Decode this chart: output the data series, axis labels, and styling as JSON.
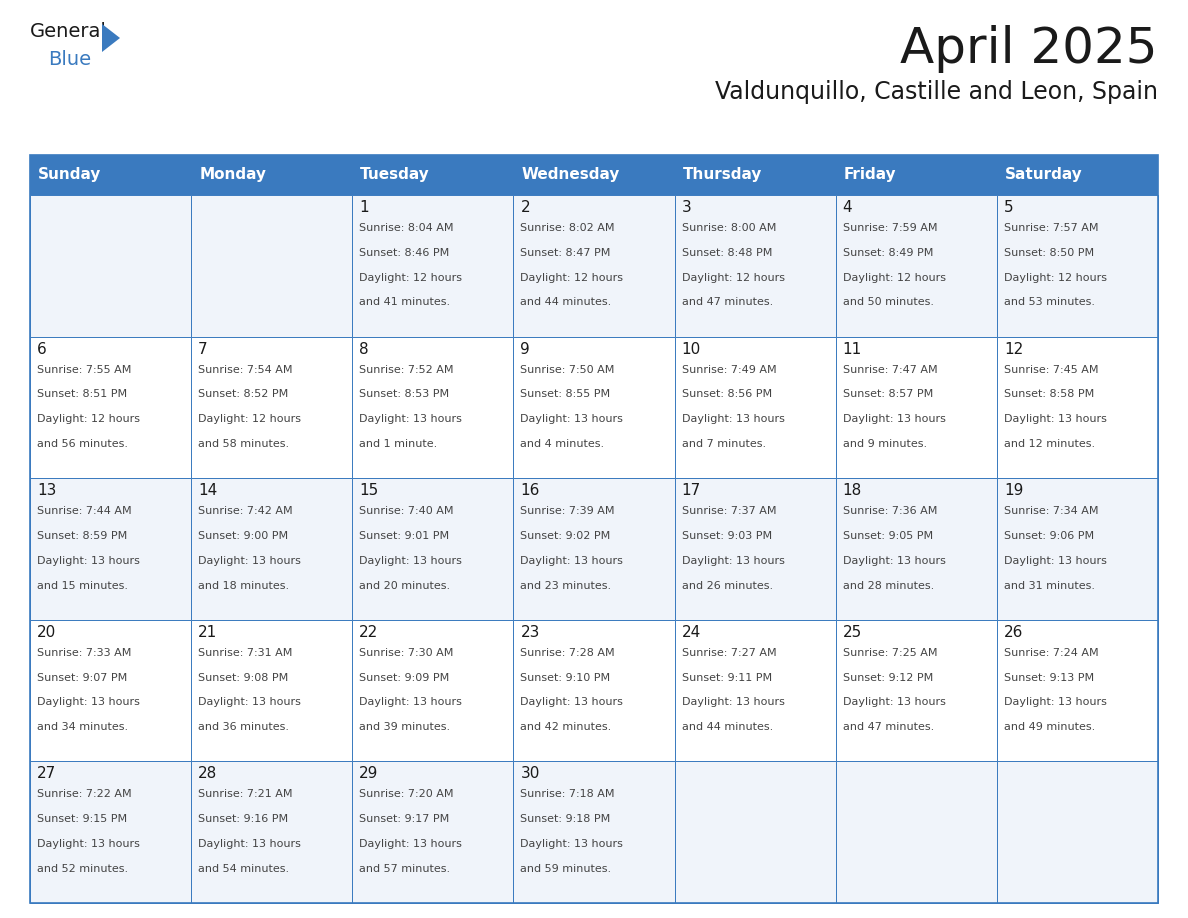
{
  "title": "April 2025",
  "subtitle": "Valdunquillo, Castille and Leon, Spain",
  "days_of_week": [
    "Sunday",
    "Monday",
    "Tuesday",
    "Wednesday",
    "Thursday",
    "Friday",
    "Saturday"
  ],
  "header_bg_color": "#3a7abf",
  "header_text_color": "#ffffff",
  "cell_bg_color": "#ffffff",
  "cell_alt_bg_color": "#f0f4fa",
  "cell_border_color": "#3a7abf",
  "title_color": "#1a1a1a",
  "subtitle_color": "#1a1a1a",
  "day_number_color": "#1a1a1a",
  "cell_text_color": "#444444",
  "logo_general_color": "#1a1a1a",
  "logo_blue_color": "#3a7abf",
  "weeks": [
    [
      {
        "day": "",
        "info": ""
      },
      {
        "day": "",
        "info": ""
      },
      {
        "day": "1",
        "info": "Sunrise: 8:04 AM\nSunset: 8:46 PM\nDaylight: 12 hours\nand 41 minutes."
      },
      {
        "day": "2",
        "info": "Sunrise: 8:02 AM\nSunset: 8:47 PM\nDaylight: 12 hours\nand 44 minutes."
      },
      {
        "day": "3",
        "info": "Sunrise: 8:00 AM\nSunset: 8:48 PM\nDaylight: 12 hours\nand 47 minutes."
      },
      {
        "day": "4",
        "info": "Sunrise: 7:59 AM\nSunset: 8:49 PM\nDaylight: 12 hours\nand 50 minutes."
      },
      {
        "day": "5",
        "info": "Sunrise: 7:57 AM\nSunset: 8:50 PM\nDaylight: 12 hours\nand 53 minutes."
      }
    ],
    [
      {
        "day": "6",
        "info": "Sunrise: 7:55 AM\nSunset: 8:51 PM\nDaylight: 12 hours\nand 56 minutes."
      },
      {
        "day": "7",
        "info": "Sunrise: 7:54 AM\nSunset: 8:52 PM\nDaylight: 12 hours\nand 58 minutes."
      },
      {
        "day": "8",
        "info": "Sunrise: 7:52 AM\nSunset: 8:53 PM\nDaylight: 13 hours\nand 1 minute."
      },
      {
        "day": "9",
        "info": "Sunrise: 7:50 AM\nSunset: 8:55 PM\nDaylight: 13 hours\nand 4 minutes."
      },
      {
        "day": "10",
        "info": "Sunrise: 7:49 AM\nSunset: 8:56 PM\nDaylight: 13 hours\nand 7 minutes."
      },
      {
        "day": "11",
        "info": "Sunrise: 7:47 AM\nSunset: 8:57 PM\nDaylight: 13 hours\nand 9 minutes."
      },
      {
        "day": "12",
        "info": "Sunrise: 7:45 AM\nSunset: 8:58 PM\nDaylight: 13 hours\nand 12 minutes."
      }
    ],
    [
      {
        "day": "13",
        "info": "Sunrise: 7:44 AM\nSunset: 8:59 PM\nDaylight: 13 hours\nand 15 minutes."
      },
      {
        "day": "14",
        "info": "Sunrise: 7:42 AM\nSunset: 9:00 PM\nDaylight: 13 hours\nand 18 minutes."
      },
      {
        "day": "15",
        "info": "Sunrise: 7:40 AM\nSunset: 9:01 PM\nDaylight: 13 hours\nand 20 minutes."
      },
      {
        "day": "16",
        "info": "Sunrise: 7:39 AM\nSunset: 9:02 PM\nDaylight: 13 hours\nand 23 minutes."
      },
      {
        "day": "17",
        "info": "Sunrise: 7:37 AM\nSunset: 9:03 PM\nDaylight: 13 hours\nand 26 minutes."
      },
      {
        "day": "18",
        "info": "Sunrise: 7:36 AM\nSunset: 9:05 PM\nDaylight: 13 hours\nand 28 minutes."
      },
      {
        "day": "19",
        "info": "Sunrise: 7:34 AM\nSunset: 9:06 PM\nDaylight: 13 hours\nand 31 minutes."
      }
    ],
    [
      {
        "day": "20",
        "info": "Sunrise: 7:33 AM\nSunset: 9:07 PM\nDaylight: 13 hours\nand 34 minutes."
      },
      {
        "day": "21",
        "info": "Sunrise: 7:31 AM\nSunset: 9:08 PM\nDaylight: 13 hours\nand 36 minutes."
      },
      {
        "day": "22",
        "info": "Sunrise: 7:30 AM\nSunset: 9:09 PM\nDaylight: 13 hours\nand 39 minutes."
      },
      {
        "day": "23",
        "info": "Sunrise: 7:28 AM\nSunset: 9:10 PM\nDaylight: 13 hours\nand 42 minutes."
      },
      {
        "day": "24",
        "info": "Sunrise: 7:27 AM\nSunset: 9:11 PM\nDaylight: 13 hours\nand 44 minutes."
      },
      {
        "day": "25",
        "info": "Sunrise: 7:25 AM\nSunset: 9:12 PM\nDaylight: 13 hours\nand 47 minutes."
      },
      {
        "day": "26",
        "info": "Sunrise: 7:24 AM\nSunset: 9:13 PM\nDaylight: 13 hours\nand 49 minutes."
      }
    ],
    [
      {
        "day": "27",
        "info": "Sunrise: 7:22 AM\nSunset: 9:15 PM\nDaylight: 13 hours\nand 52 minutes."
      },
      {
        "day": "28",
        "info": "Sunrise: 7:21 AM\nSunset: 9:16 PM\nDaylight: 13 hours\nand 54 minutes."
      },
      {
        "day": "29",
        "info": "Sunrise: 7:20 AM\nSunset: 9:17 PM\nDaylight: 13 hours\nand 57 minutes."
      },
      {
        "day": "30",
        "info": "Sunrise: 7:18 AM\nSunset: 9:18 PM\nDaylight: 13 hours\nand 59 minutes."
      },
      {
        "day": "",
        "info": ""
      },
      {
        "day": "",
        "info": ""
      },
      {
        "day": "",
        "info": ""
      }
    ]
  ]
}
